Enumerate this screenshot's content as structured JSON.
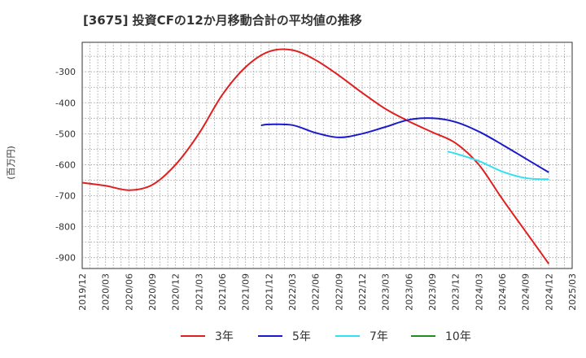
{
  "chart_data": {
    "type": "line",
    "title": "[3675]  投資CFの12か月移動合計の平均値の推移",
    "ylabel": "(百万円)",
    "xlabel": "",
    "ylim": [
      -935,
      -205
    ],
    "yticks": [
      -900,
      -800,
      -700,
      -600,
      -500,
      -400,
      -300
    ],
    "xticks": [
      "2019/12",
      "2020/03",
      "2020/06",
      "2020/09",
      "2020/12",
      "2021/03",
      "2021/06",
      "2021/09",
      "2021/12",
      "2022/03",
      "2022/06",
      "2022/09",
      "2022/12",
      "2023/03",
      "2023/06",
      "2023/09",
      "2023/12",
      "2024/03",
      "2024/06",
      "2024/09",
      "2024/12",
      "2025/03"
    ],
    "grid": true,
    "legend_position": "bottom",
    "series": [
      {
        "name": "3年",
        "color": "#e02020",
        "x": [
          "2019/12",
          "2020/03",
          "2020/06",
          "2020/09",
          "2020/12",
          "2021/03",
          "2021/06",
          "2021/09",
          "2021/12",
          "2022/03",
          "2022/06",
          "2022/09",
          "2022/12",
          "2023/03",
          "2023/06",
          "2023/09",
          "2023/12",
          "2024/03",
          "2024/06",
          "2024/09",
          "2024/12"
        ],
        "values": [
          -658,
          -668,
          -682,
          -665,
          -600,
          -500,
          -375,
          -285,
          -235,
          -230,
          -262,
          -312,
          -368,
          -420,
          -460,
          -495,
          -530,
          -600,
          -710,
          -815,
          -920
        ]
      },
      {
        "name": "5年",
        "color": "#1a1acc",
        "x": [
          "2021/11",
          "2021/12",
          "2022/03",
          "2022/06",
          "2022/09",
          "2022/12",
          "2023/03",
          "2023/06",
          "2023/09",
          "2023/12",
          "2024/03",
          "2024/06",
          "2024/09",
          "2024/12"
        ],
        "values": [
          -473,
          -470,
          -472,
          -497,
          -512,
          -500,
          -478,
          -455,
          -450,
          -462,
          -493,
          -535,
          -580,
          -625
        ]
      },
      {
        "name": "7年",
        "color": "#33e0f0",
        "x": [
          "2023/11",
          "2023/12",
          "2024/03",
          "2024/06",
          "2024/09",
          "2024/12"
        ],
        "values": [
          -558,
          -564,
          -588,
          -622,
          -643,
          -647
        ]
      },
      {
        "name": "10年",
        "color": "#228b22",
        "x": [],
        "values": []
      }
    ]
  }
}
